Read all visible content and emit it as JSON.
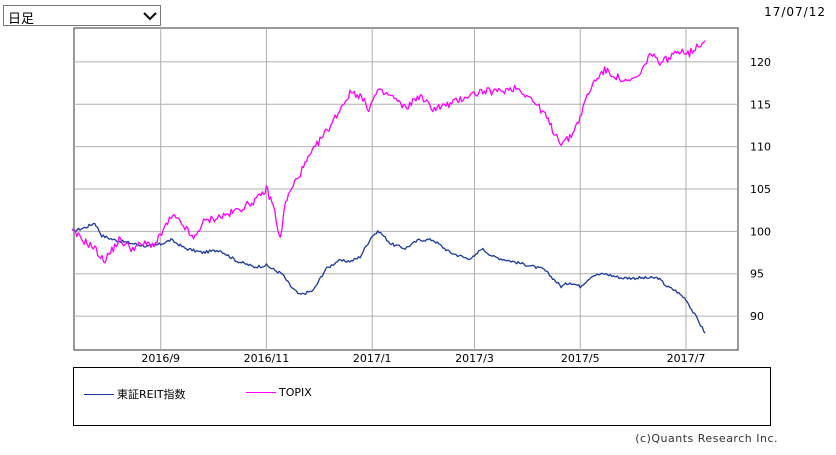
{
  "controls": {
    "period_select": "日足",
    "date_stamp": "17/07/12"
  },
  "credit": "(c)Quants Research Inc.",
  "colors": {
    "reit": "#1a3a9c",
    "topix": "#ff00ff",
    "grid": "#b0b0b0"
  },
  "icons": {
    "dropdown": "chevron-down-icon"
  },
  "chart_data": {
    "type": "line",
    "x_ticks": [
      "2016/9",
      "2016/11",
      "2017/1",
      "2017/3",
      "2017/5",
      "2017/7"
    ],
    "y_ticks": [
      "90",
      "95",
      "100",
      "105",
      "110",
      "115",
      "120"
    ],
    "ylim": [
      86,
      124
    ],
    "xlim": [
      "2016-07-13",
      "2017-07-31"
    ],
    "grid": true,
    "legend_position": "bottom",
    "series": [
      {
        "name": "東証REIT指数",
        "color": "#1a3a9c",
        "points": [
          [
            "2016-07-12",
            100.0
          ],
          [
            "2016-07-20",
            100.5
          ],
          [
            "2016-07-25",
            101.0
          ],
          [
            "2016-07-29",
            99.5
          ],
          [
            "2016-08-05",
            99.0
          ],
          [
            "2016-08-15",
            98.6
          ],
          [
            "2016-08-25",
            98.2
          ],
          [
            "2016-09-01",
            98.5
          ],
          [
            "2016-09-07",
            99.0
          ],
          [
            "2016-09-15",
            98.0
          ],
          [
            "2016-09-25",
            97.5
          ],
          [
            "2016-10-05",
            97.8
          ],
          [
            "2016-10-15",
            96.5
          ],
          [
            "2016-10-25",
            95.8
          ],
          [
            "2016-11-01",
            96.0
          ],
          [
            "2016-11-05",
            95.5
          ],
          [
            "2016-11-10",
            95.0
          ],
          [
            "2016-11-15",
            93.5
          ],
          [
            "2016-11-20",
            92.5
          ],
          [
            "2016-11-28",
            93.0
          ],
          [
            "2016-12-05",
            95.5
          ],
          [
            "2016-12-12",
            96.5
          ],
          [
            "2016-12-20",
            96.5
          ],
          [
            "2016-12-25",
            97.0
          ],
          [
            "2017-01-01",
            99.5
          ],
          [
            "2017-01-05",
            100.0
          ],
          [
            "2017-01-12",
            98.5
          ],
          [
            "2017-01-20",
            98.0
          ],
          [
            "2017-01-28",
            99.0
          ],
          [
            "2017-02-05",
            99.0
          ],
          [
            "2017-02-15",
            97.5
          ],
          [
            "2017-02-25",
            96.8
          ],
          [
            "2017-03-01",
            97.0
          ],
          [
            "2017-03-05",
            98.0
          ],
          [
            "2017-03-12",
            97.0
          ],
          [
            "2017-03-22",
            96.5
          ],
          [
            "2017-04-01",
            96.0
          ],
          [
            "2017-04-10",
            95.5
          ],
          [
            "2017-04-15",
            94.5
          ],
          [
            "2017-04-20",
            93.5
          ],
          [
            "2017-04-25",
            94.0
          ],
          [
            "2017-05-01",
            93.5
          ],
          [
            "2017-05-08",
            94.8
          ],
          [
            "2017-05-15",
            95.0
          ],
          [
            "2017-05-25",
            94.5
          ],
          [
            "2017-06-05",
            94.5
          ],
          [
            "2017-06-15",
            94.5
          ],
          [
            "2017-06-20",
            93.5
          ],
          [
            "2017-06-25",
            93.0
          ],
          [
            "2017-07-01",
            92.0
          ],
          [
            "2017-07-05",
            90.5
          ],
          [
            "2017-07-08",
            89.5
          ],
          [
            "2017-07-12",
            88.0
          ]
        ]
      },
      {
        "name": "TOPIX",
        "color": "#ff00ff",
        "points": [
          [
            "2016-07-12",
            100.0
          ],
          [
            "2016-07-18",
            99.0
          ],
          [
            "2016-07-25",
            98.0
          ],
          [
            "2016-07-30",
            96.5
          ],
          [
            "2016-08-03",
            97.5
          ],
          [
            "2016-08-08",
            99.0
          ],
          [
            "2016-08-15",
            98.0
          ],
          [
            "2016-08-22",
            98.5
          ],
          [
            "2016-08-29",
            98.5
          ],
          [
            "2016-09-05",
            101.0
          ],
          [
            "2016-09-08",
            101.8
          ],
          [
            "2016-09-15",
            100.5
          ],
          [
            "2016-09-20",
            99.0
          ],
          [
            "2016-09-25",
            101.0
          ],
          [
            "2016-10-01",
            101.5
          ],
          [
            "2016-10-10",
            102.0
          ],
          [
            "2016-10-20",
            103.0
          ],
          [
            "2016-10-28",
            104.0
          ],
          [
            "2016-11-01",
            105.0
          ],
          [
            "2016-11-05",
            103.0
          ],
          [
            "2016-11-09",
            99.0
          ],
          [
            "2016-11-12",
            103.5
          ],
          [
            "2016-11-18",
            106.0
          ],
          [
            "2016-11-25",
            108.5
          ],
          [
            "2016-12-01",
            110.5
          ],
          [
            "2016-12-08",
            112.5
          ],
          [
            "2016-12-15",
            115.0
          ],
          [
            "2016-12-20",
            116.5
          ],
          [
            "2016-12-25",
            116.0
          ],
          [
            "2016-12-30",
            114.5
          ],
          [
            "2017-01-04",
            116.5
          ],
          [
            "2017-01-12",
            116.0
          ],
          [
            "2017-01-20",
            114.5
          ],
          [
            "2017-01-28",
            116.0
          ],
          [
            "2017-02-05",
            114.5
          ],
          [
            "2017-02-15",
            115.0
          ],
          [
            "2017-02-25",
            116.0
          ],
          [
            "2017-03-05",
            116.5
          ],
          [
            "2017-03-15",
            116.5
          ],
          [
            "2017-03-25",
            117.0
          ],
          [
            "2017-04-01",
            116.0
          ],
          [
            "2017-04-10",
            114.0
          ],
          [
            "2017-04-15",
            112.0
          ],
          [
            "2017-04-20",
            110.5
          ],
          [
            "2017-04-25",
            111.0
          ],
          [
            "2017-05-01",
            113.5
          ],
          [
            "2017-05-05",
            116.0
          ],
          [
            "2017-05-10",
            118.0
          ],
          [
            "2017-05-15",
            119.0
          ],
          [
            "2017-05-20",
            118.5
          ],
          [
            "2017-05-28",
            117.5
          ],
          [
            "2017-06-05",
            118.5
          ],
          [
            "2017-06-10",
            121.0
          ],
          [
            "2017-06-15",
            120.0
          ],
          [
            "2017-06-22",
            120.5
          ],
          [
            "2017-06-28",
            121.5
          ],
          [
            "2017-07-03",
            121.0
          ],
          [
            "2017-07-08",
            122.0
          ],
          [
            "2017-07-12",
            122.5
          ]
        ]
      }
    ]
  }
}
